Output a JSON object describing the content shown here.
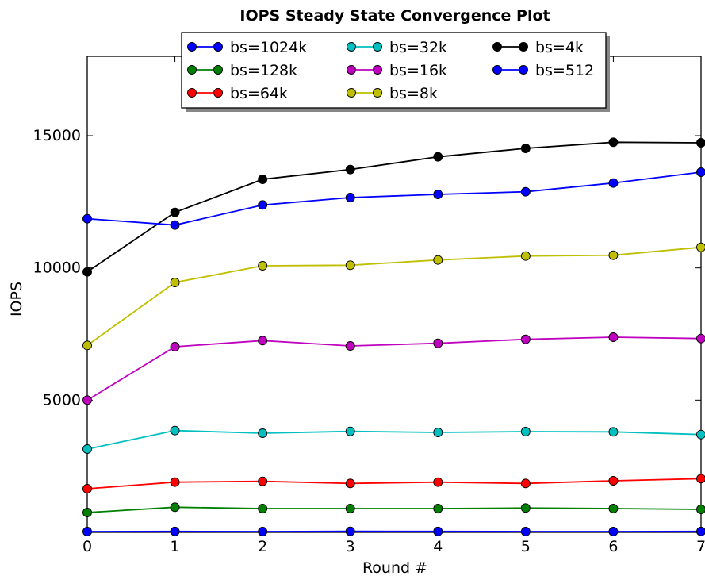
{
  "chart_data": {
    "type": "line",
    "title": "IOPS Steady State Convergence Plot",
    "xlabel": "Round #",
    "ylabel": "IOPS",
    "xlim": [
      0,
      7
    ],
    "ylim": [
      0,
      18000
    ],
    "xticks": [
      "0",
      "1",
      "2",
      "3",
      "4",
      "5",
      "6",
      "7"
    ],
    "yticks": [
      {
        "v": 5000,
        "label": "5000"
      },
      {
        "v": 10000,
        "label": "10000"
      },
      {
        "v": 15000,
        "label": "15000"
      }
    ],
    "grid": false,
    "legend": "top-center",
    "x": [
      0,
      1,
      2,
      3,
      4,
      5,
      6,
      7
    ],
    "series": [
      {
        "name": "bs=1024k",
        "color": "#0000ff",
        "values": [
          30,
          35,
          30,
          40,
          35,
          30,
          30,
          35
        ]
      },
      {
        "name": "bs=128k",
        "color": "#008000",
        "values": [
          750,
          950,
          900,
          900,
          900,
          920,
          900,
          870
        ]
      },
      {
        "name": "bs=64k",
        "color": "#ff0000",
        "values": [
          1650,
          1900,
          1930,
          1850,
          1900,
          1850,
          1950,
          2030
        ]
      },
      {
        "name": "bs=32k",
        "color": "#00bfbf",
        "values": [
          3150,
          3850,
          3750,
          3820,
          3780,
          3810,
          3800,
          3700
        ]
      },
      {
        "name": "bs=16k",
        "color": "#bf00bf",
        "values": [
          5000,
          7020,
          7250,
          7050,
          7150,
          7300,
          7380,
          7330
        ]
      },
      {
        "name": "bs=8k",
        "color": "#bfbf00",
        "values": [
          7070,
          9450,
          10080,
          10100,
          10300,
          10450,
          10480,
          10780
        ]
      },
      {
        "name": "bs=4k",
        "color": "#000000",
        "values": [
          9850,
          12100,
          13350,
          13720,
          14200,
          14520,
          14750,
          14730
        ]
      },
      {
        "name": "bs=512",
        "color": "#0000ff",
        "values": [
          11860,
          11620,
          12380,
          12660,
          12780,
          12880,
          13210,
          13620
        ]
      }
    ]
  }
}
